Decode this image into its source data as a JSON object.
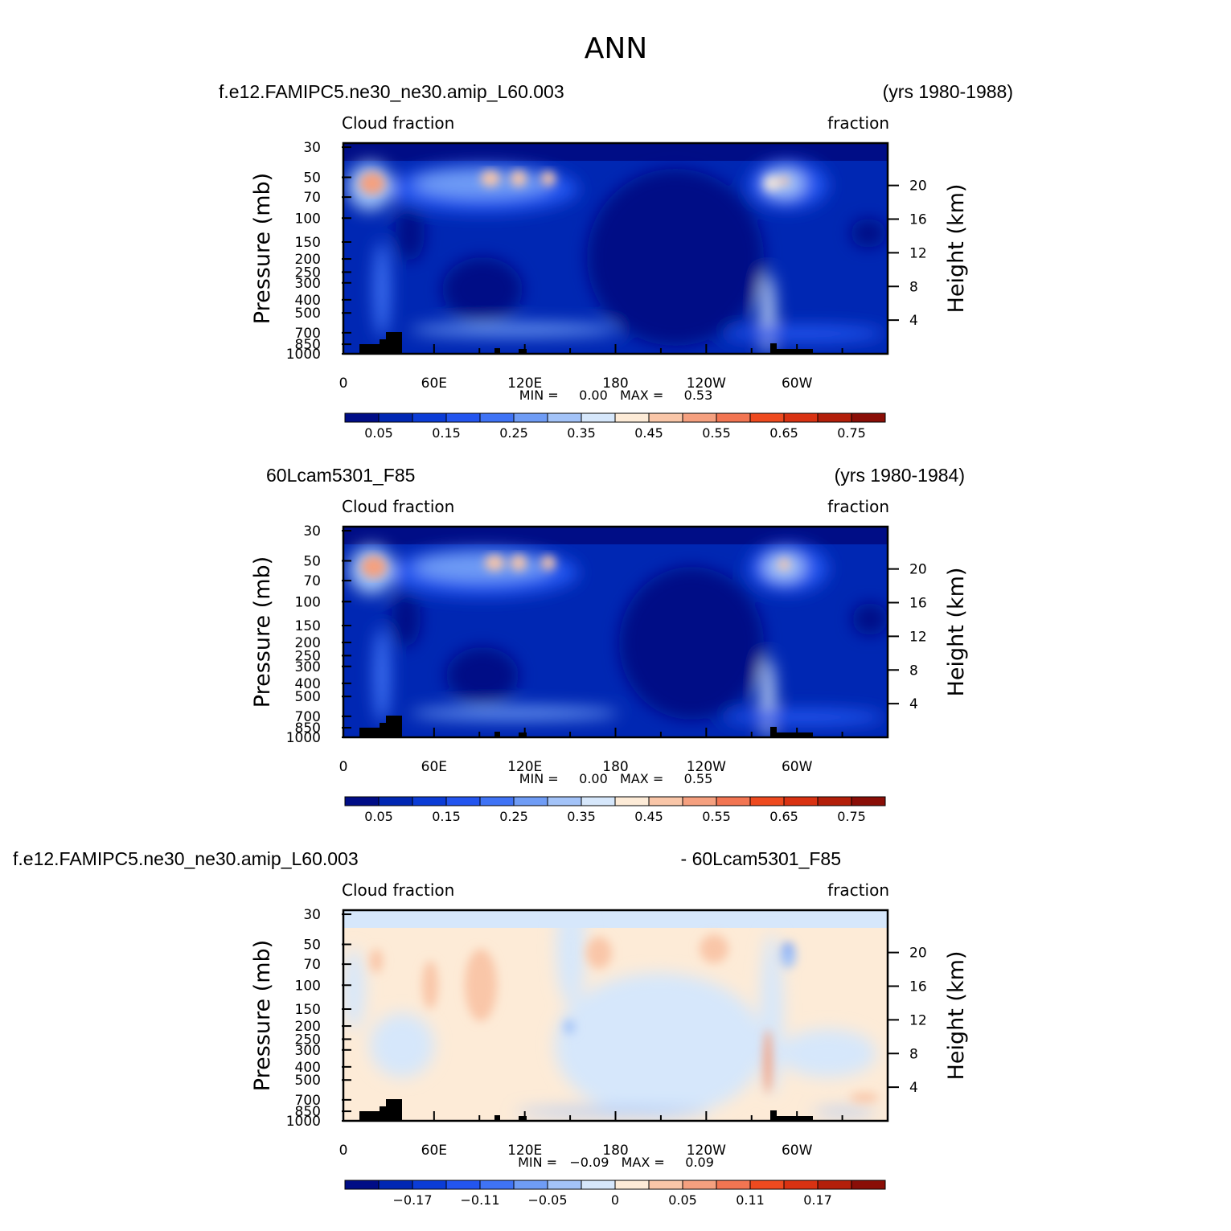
{
  "page": {
    "title": "ANN"
  },
  "colors": {
    "seq_palette": [
      "#000d86",
      "#0027b3",
      "#0b3cd6",
      "#2355ef",
      "#3f73f5",
      "#6f9cf5",
      "#a3c3f8",
      "#d6e7fb",
      "#fdebd7",
      "#f9c6a8",
      "#f5a07f",
      "#f27552",
      "#ee4a1f",
      "#d93212",
      "#b31f0a",
      "#8a0e07"
    ],
    "diff_palette": [
      "#000d86",
      "#0027b3",
      "#0b3cd6",
      "#2355ef",
      "#3f73f5",
      "#6f9cf5",
      "#a3c3f8",
      "#d6e7fb",
      "#fdebd7",
      "#f9c6a8",
      "#f5a07f",
      "#f27552",
      "#ee4a1f",
      "#d93212",
      "#b31f0a",
      "#8a0e07"
    ],
    "land_mask": "#000000"
  },
  "panels": [
    {
      "case_left": "f.e12.FAMIPC5.ne30_ne30.amip_L60.003",
      "case_right": "(yrs 1980-1988)",
      "var_left": "Cloud fraction",
      "var_right": "fraction",
      "min_max": "MIN =     0.00   MAX =     0.53",
      "colorbar_labels": [
        "0.05",
        "0.15",
        "0.25",
        "0.35",
        "0.45",
        "0.55",
        "0.65",
        "0.75"
      ]
    },
    {
      "case_left": "60Lcam5301_F85",
      "case_right": "(yrs 1980-1984)",
      "var_left": "Cloud fraction",
      "var_right": "fraction",
      "min_max": "MIN =     0.00   MAX =     0.55",
      "colorbar_labels": [
        "0.05",
        "0.15",
        "0.25",
        "0.35",
        "0.45",
        "0.55",
        "0.65",
        "0.75"
      ]
    },
    {
      "case_left": "f.e12.FAMIPC5.ne30_ne30.amip_L60.003",
      "case_right": "- 60Lcam5301_F85",
      "var_left": "Cloud fraction",
      "var_right": "fraction",
      "min_max": "MIN =   −0.09   MAX =     0.09",
      "colorbar_labels": [
        "−0.17",
        "−0.11",
        "−0.05",
        "0",
        "0.05",
        "0.11",
        "0.17"
      ]
    }
  ],
  "chart_data": [
    {
      "type": "heatmap",
      "title": "Cloud fraction",
      "units": "fraction",
      "xlabel": "",
      "ylabel": "Pressure (mb)",
      "y2label": "Height (km)",
      "x_ticks": [
        "0",
        "60E",
        "120E",
        "180",
        "120W",
        "60W"
      ],
      "y_ticks": [
        "30",
        "50",
        "70",
        "100",
        "150",
        "200",
        "250",
        "300",
        "400",
        "500",
        "700",
        "850",
        "1000"
      ],
      "y_labels_shown": [
        "30",
        "50",
        "70",
        "100",
        "150",
        "200",
        "250",
        "300",
        "400",
        "500",
        "700",
        "850",
        "1000"
      ],
      "y2_ticks": [
        "20",
        "16",
        "12",
        "8",
        "4"
      ],
      "min": 0.0,
      "max": 0.53
    },
    {
      "type": "heatmap",
      "title": "Cloud fraction",
      "units": "fraction",
      "xlabel": "",
      "ylabel": "Pressure (mb)",
      "y2label": "Height (km)",
      "x_ticks": [
        "0",
        "60E",
        "120E",
        "180",
        "120W",
        "60W"
      ],
      "y_ticks": [
        "30",
        "50",
        "70",
        "100",
        "150",
        "200",
        "250",
        "300",
        "400",
        "500",
        "700",
        "850",
        "1000"
      ],
      "y_labels_shown": [
        "30",
        "50",
        "70",
        "100",
        "150",
        "200",
        "250",
        "300",
        "400",
        "500",
        "700",
        "850",
        "1000"
      ],
      "y2_ticks": [
        "20",
        "16",
        "12",
        "8",
        "4"
      ],
      "min": 0.0,
      "max": 0.55
    },
    {
      "type": "heatmap",
      "title": "Cloud fraction",
      "units": "fraction",
      "xlabel": "",
      "ylabel": "Pressure (mb)",
      "y2label": "Height (km)",
      "x_ticks": [
        "0",
        "60E",
        "120E",
        "180",
        "120W",
        "60W"
      ],
      "y_ticks": [
        "30",
        "50",
        "70",
        "100",
        "150",
        "200",
        "250",
        "300",
        "400",
        "500",
        "700",
        "850",
        "1000"
      ],
      "y_labels_shown": [
        "30",
        "50",
        "70",
        "100",
        "150",
        "200",
        "250",
        "300",
        "400",
        "500",
        "700",
        "850",
        "1000"
      ],
      "y2_ticks": [
        "20",
        "16",
        "12",
        "8",
        "4"
      ],
      "min": -0.09,
      "max": 0.09
    }
  ]
}
